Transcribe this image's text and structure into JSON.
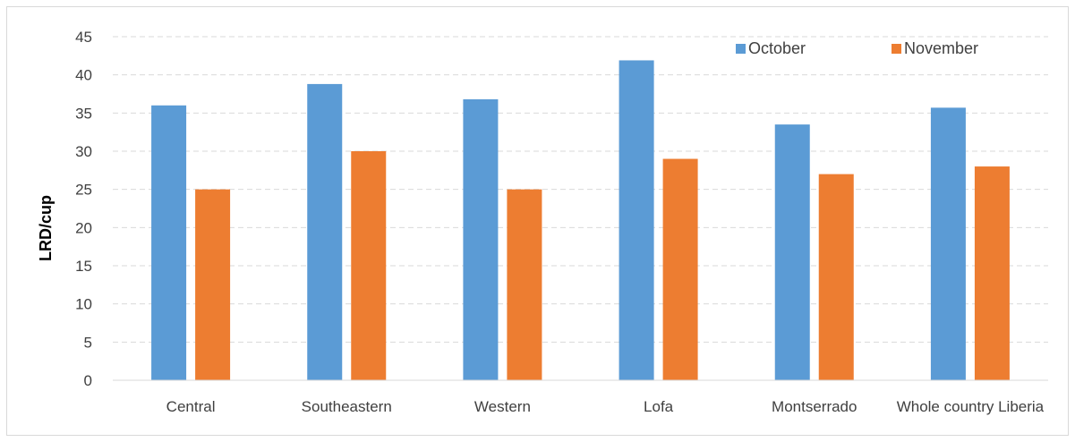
{
  "chart_data": {
    "type": "bar",
    "title": "",
    "xlabel": "",
    "ylabel": "LRD/cup",
    "ylim": [
      0,
      45
    ],
    "yticks": [
      0,
      5,
      10,
      15,
      20,
      25,
      30,
      35,
      40,
      45
    ],
    "grid": true,
    "legend_position": "top-right",
    "categories": [
      "Central",
      "Southeastern",
      "Western",
      "Lofa",
      "Montserrado",
      "Whole country Liberia"
    ],
    "series": [
      {
        "name": "October",
        "color": "#5b9bd5",
        "values": [
          36,
          38.8,
          36.8,
          41.9,
          33.5,
          35.7
        ]
      },
      {
        "name": "November",
        "color": "#ed7d31",
        "values": [
          25,
          30,
          25,
          29,
          27,
          28
        ]
      }
    ]
  }
}
